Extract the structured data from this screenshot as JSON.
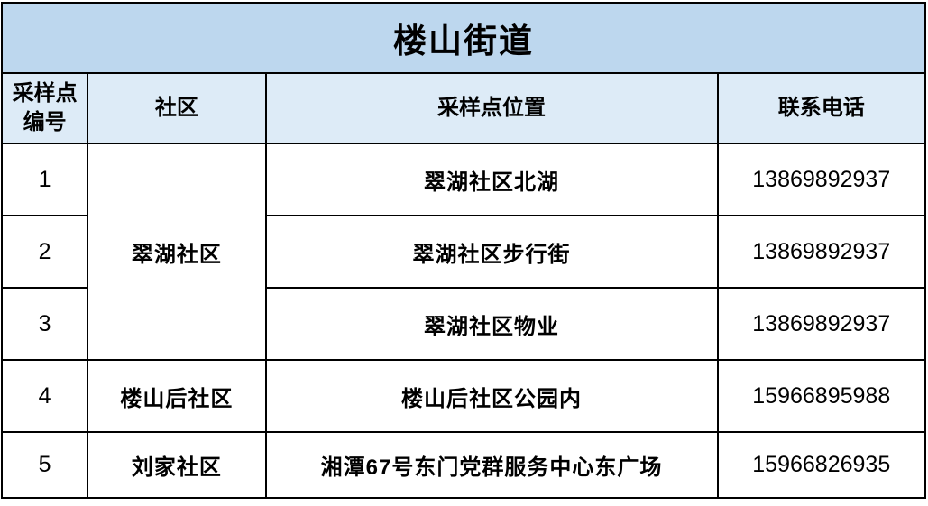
{
  "table": {
    "title": "楼山街道",
    "headers": {
      "id": "采样点编号",
      "community": "社区",
      "location": "采样点位置",
      "phone": "联系电话"
    },
    "rows": [
      {
        "id": "1",
        "community": "翠湖社区",
        "location": "翠湖社区北湖",
        "phone": "13869892937"
      },
      {
        "id": "2",
        "location": "翠湖社区步行街",
        "phone": "13869892937"
      },
      {
        "id": "3",
        "location": "翠湖社区物业",
        "phone": "13869892937"
      },
      {
        "id": "4",
        "community": "楼山后社区",
        "location": "楼山后社区公园内",
        "phone": "15966895988"
      },
      {
        "id": "5",
        "community": "刘家社区",
        "location": "湘潭67号东门党群服务中心东广场",
        "phone": "15966826935"
      }
    ],
    "colors": {
      "title_bg": "#BDD7EE",
      "header_bg": "#DDEBF7",
      "border": "#000000",
      "text": "#000000"
    }
  }
}
